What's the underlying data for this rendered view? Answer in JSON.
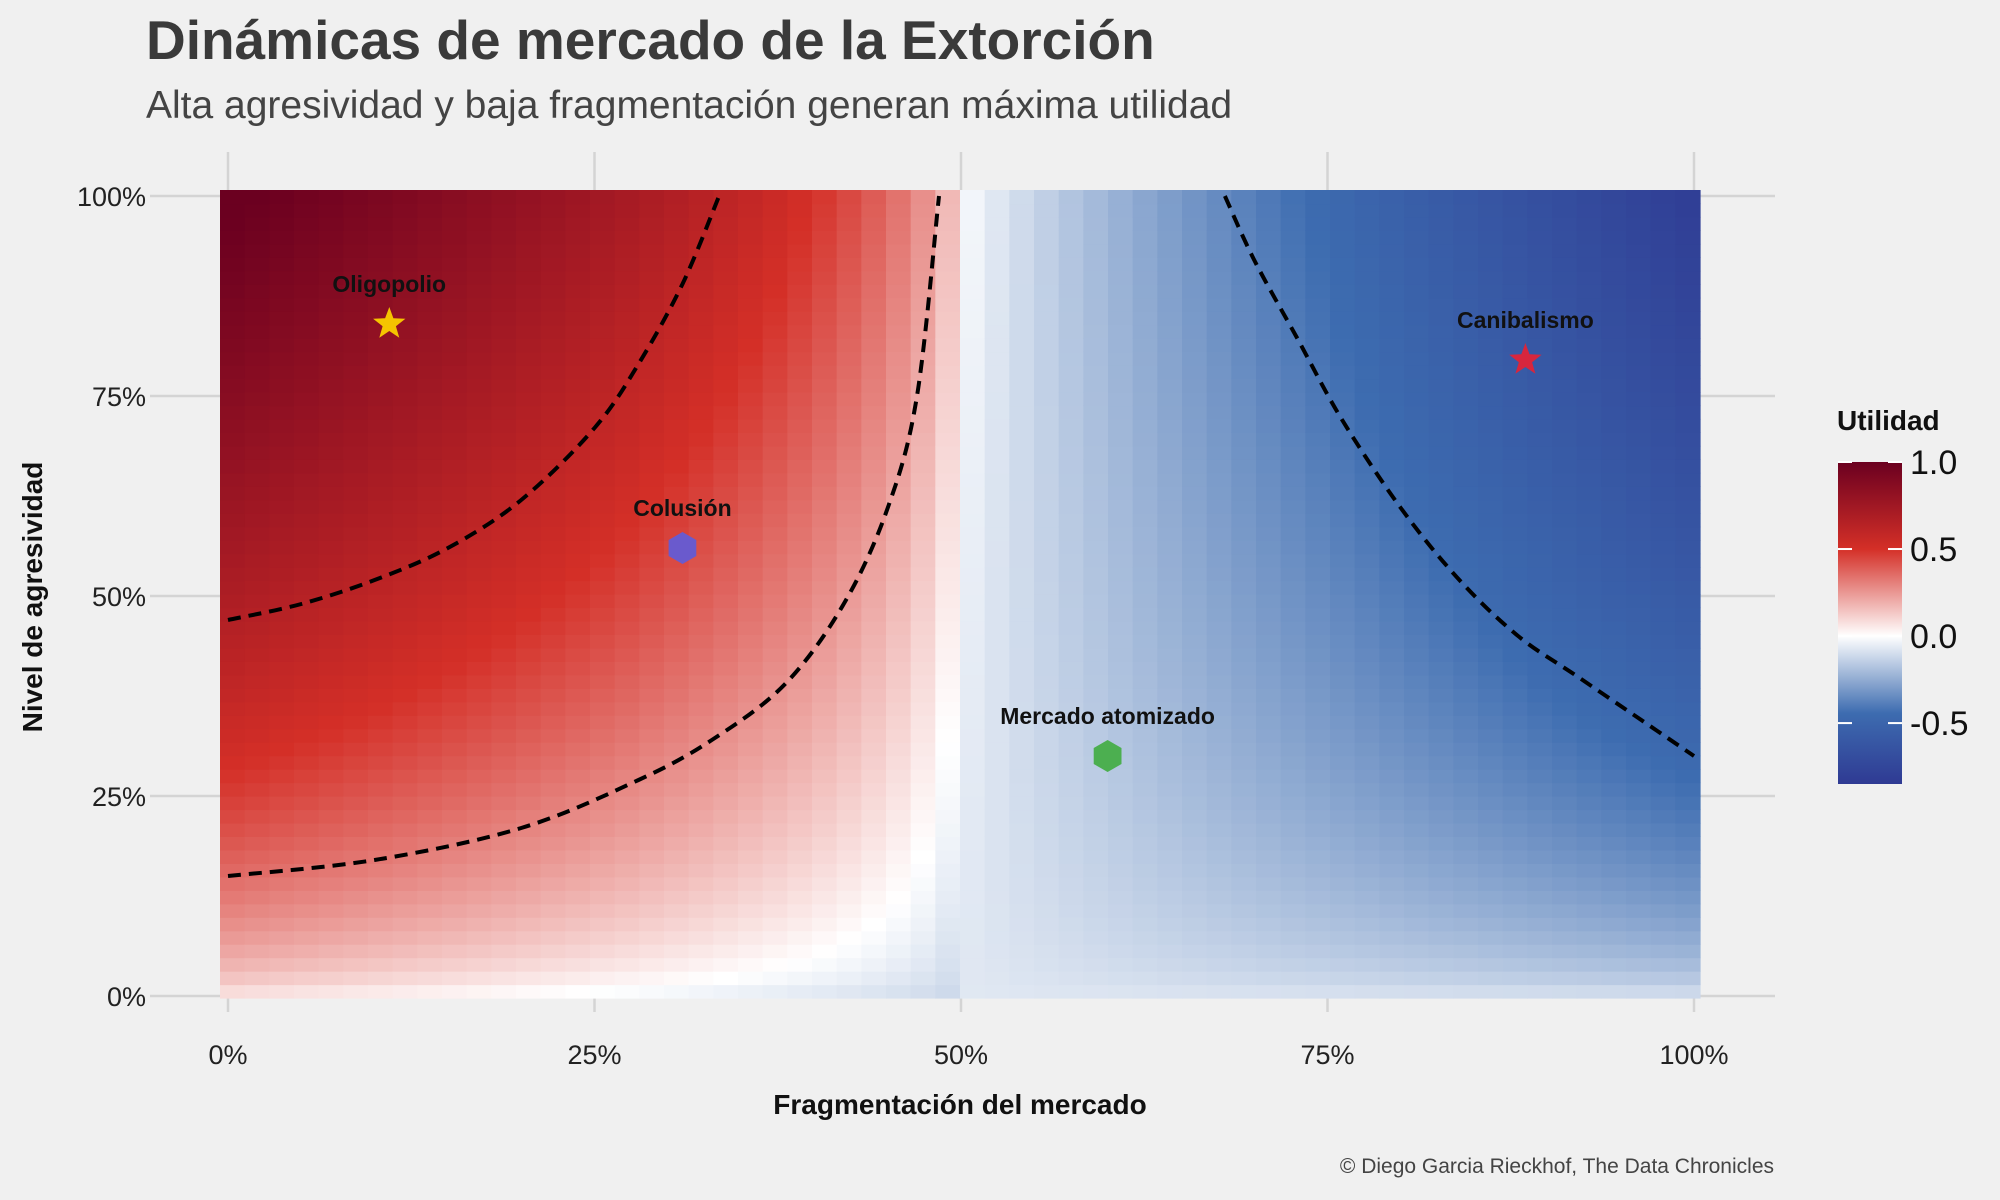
{
  "header": {
    "title": "Dinámicas de mercado de la Extorción",
    "subtitle": "Alta agresividad y baja fragmentación generan máxima utilidad"
  },
  "caption": "© Diego Garcia Rieckhof, The Data Chronicles",
  "chart_data": {
    "type": "heatmap",
    "xlabel": "Fragmentación del mercado",
    "ylabel": "Nivel de agresividad",
    "xlim": [
      0,
      1
    ],
    "ylim": [
      0,
      1
    ],
    "x_ticks": [
      {
        "value": 0,
        "label": "0%"
      },
      {
        "value": 0.25,
        "label": "25%"
      },
      {
        "value": 0.5,
        "label": "50%"
      },
      {
        "value": 0.75,
        "label": "75%"
      },
      {
        "value": 1,
        "label": "100%"
      }
    ],
    "y_ticks": [
      {
        "value": 0,
        "label": "0%"
      },
      {
        "value": 0.25,
        "label": "25%"
      },
      {
        "value": 0.5,
        "label": "50%"
      },
      {
        "value": 0.75,
        "label": "75%"
      },
      {
        "value": 1,
        "label": "100%"
      }
    ],
    "grid": true,
    "fill": {
      "name": "Utilidad",
      "range": [
        -0.85,
        1.0
      ],
      "colors": {
        "low": "#2f3a93",
        "mid_low": "#3d6cb0",
        "zero": "#ffffff",
        "mid_high": "#d42f27",
        "high": "#6b0020"
      }
    },
    "legend": {
      "title": "Utilidad",
      "position": "right",
      "ticks": [
        {
          "value": 1.0,
          "label": "1.0"
        },
        {
          "value": 0.5,
          "label": "0.5"
        },
        {
          "value": 0.0,
          "label": "0.0"
        },
        {
          "value": -0.5,
          "label": "-0.5"
        }
      ]
    },
    "contours": [
      {
        "level": 0.6,
        "points": [
          [
            0.0,
            0.47
          ],
          [
            0.05,
            0.49
          ],
          [
            0.1,
            0.52
          ],
          [
            0.15,
            0.56
          ],
          [
            0.2,
            0.62
          ],
          [
            0.25,
            0.71
          ],
          [
            0.28,
            0.79
          ],
          [
            0.31,
            0.89
          ],
          [
            0.335,
            1.0
          ]
        ]
      },
      {
        "level": 0.05,
        "points": [
          [
            0.0,
            0.15
          ],
          [
            0.1,
            0.17
          ],
          [
            0.2,
            0.21
          ],
          [
            0.28,
            0.27
          ],
          [
            0.33,
            0.32
          ],
          [
            0.38,
            0.39
          ],
          [
            0.42,
            0.49
          ],
          [
            0.45,
            0.61
          ],
          [
            0.47,
            0.75
          ],
          [
            0.485,
            1.0
          ]
        ]
      },
      {
        "level": -0.45,
        "points": [
          [
            0.68,
            1.0
          ],
          [
            0.7,
            0.92
          ],
          [
            0.73,
            0.82
          ],
          [
            0.76,
            0.72
          ],
          [
            0.8,
            0.61
          ],
          [
            0.84,
            0.52
          ],
          [
            0.88,
            0.45
          ],
          [
            0.92,
            0.4
          ],
          [
            0.96,
            0.35
          ],
          [
            1.0,
            0.3
          ]
        ]
      }
    ],
    "points": [
      {
        "name": "Oligopolio",
        "x": 0.11,
        "y": 0.84,
        "marker": "star",
        "color": "#f5c400"
      },
      {
        "name": "Colusión",
        "x": 0.31,
        "y": 0.56,
        "marker": "hexagon",
        "color": "#6a5acd"
      },
      {
        "name": "Mercado atomizado",
        "x": 0.6,
        "y": 0.3,
        "marker": "hexagon",
        "color": "#4caf50"
      },
      {
        "name": "Canibalismo",
        "x": 0.885,
        "y": 0.795,
        "marker": "star",
        "color": "#d7263d"
      }
    ]
  }
}
